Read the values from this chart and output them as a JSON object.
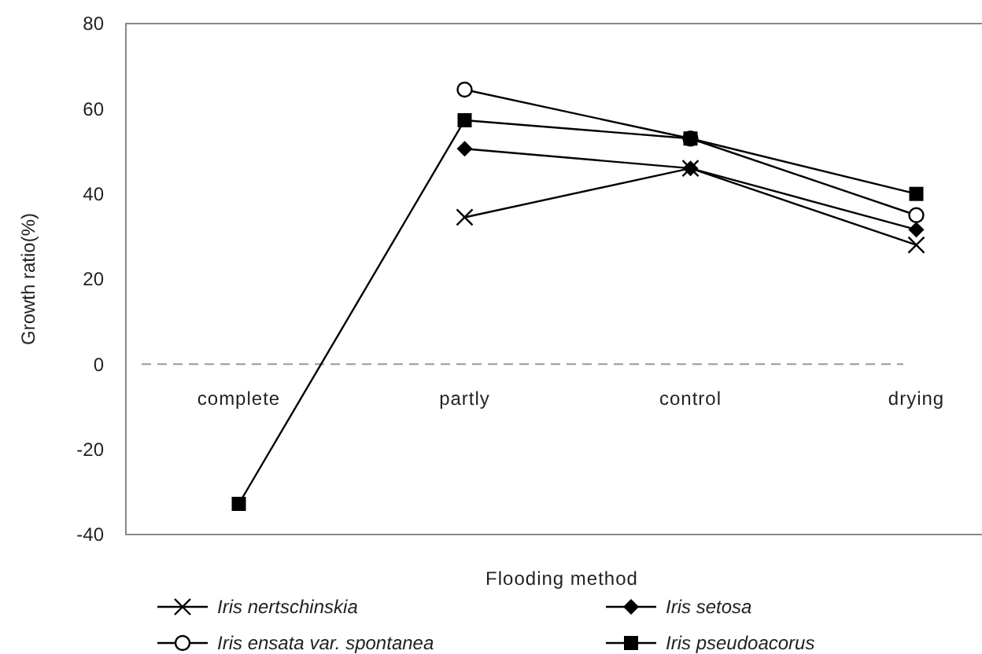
{
  "chart_data": {
    "type": "line",
    "xlabel": "Flooding method",
    "ylabel": "Growth ratio(%)",
    "categories": [
      "complete",
      "partly",
      "control",
      "drying"
    ],
    "ylim": [
      -40,
      80
    ],
    "yticks": [
      -40,
      -20,
      0,
      20,
      40,
      60,
      80
    ],
    "grid": false,
    "legend": "bottom",
    "line_style": "solid",
    "ref_lines": [
      {
        "axis": "y",
        "value": 0,
        "color": "#999999",
        "line_style": "dashed"
      }
    ],
    "series": [
      {
        "name": "Iris nertschinskia",
        "color": "#000000",
        "marker": "cross",
        "values": [
          null,
          34.5,
          46,
          28
        ]
      },
      {
        "name": "Iris setosa",
        "color": "#000000",
        "marker": "diamond",
        "values": [
          null,
          50.6,
          46,
          31.6
        ]
      },
      {
        "name": "Iris ensata var. spontanea",
        "color": "#000000",
        "marker": "circle",
        "values": [
          null,
          64.5,
          53,
          35
        ]
      },
      {
        "name": "Iris pseudoacorus",
        "color": "#000000",
        "marker": "square",
        "values": [
          -32.8,
          57.3,
          53,
          40
        ]
      }
    ]
  }
}
